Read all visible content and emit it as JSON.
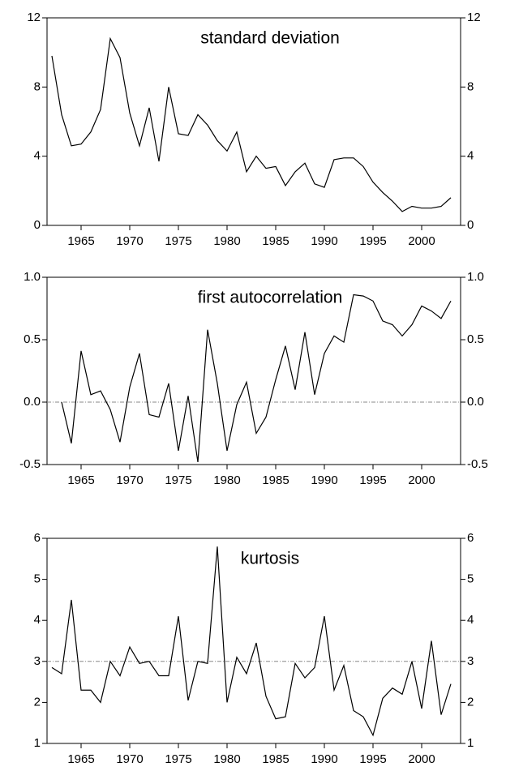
{
  "chart_data": [
    {
      "type": "line",
      "title": "standard deviation",
      "x": [
        1962,
        1963,
        1964,
        1965,
        1966,
        1967,
        1968,
        1969,
        1970,
        1971,
        1972,
        1973,
        1974,
        1975,
        1976,
        1977,
        1978,
        1979,
        1980,
        1981,
        1982,
        1983,
        1984,
        1985,
        1986,
        1987,
        1988,
        1989,
        1990,
        1991,
        1992,
        1993,
        1994,
        1995,
        1996,
        1997,
        1998,
        1999,
        2000,
        2001,
        2002,
        2003
      ],
      "values": [
        9.8,
        6.4,
        4.6,
        4.7,
        5.4,
        6.7,
        10.8,
        9.7,
        6.5,
        4.6,
        6.8,
        3.7,
        8.0,
        5.3,
        5.2,
        6.4,
        5.8,
        4.9,
        4.3,
        5.4,
        3.1,
        4.0,
        3.3,
        3.4,
        2.3,
        3.1,
        3.6,
        2.4,
        2.2,
        3.8,
        3.9,
        3.9,
        3.4,
        2.5,
        1.9,
        1.4,
        0.8,
        1.1,
        1.0,
        1.0,
        1.1,
        1.6
      ],
      "color": "#000000",
      "xlim": [
        1961.5,
        2004
      ],
      "xticks": [
        1965,
        1970,
        1975,
        1980,
        1985,
        1990,
        1995,
        2000
      ],
      "ylim": [
        0,
        12
      ],
      "yticks": [
        0,
        4,
        8,
        12
      ]
    },
    {
      "type": "line",
      "title": "first autocorrelation",
      "x": [
        1962,
        1963,
        1964,
        1965,
        1966,
        1967,
        1968,
        1969,
        1970,
        1971,
        1972,
        1973,
        1974,
        1975,
        1976,
        1977,
        1978,
        1979,
        1980,
        1981,
        1982,
        1983,
        1984,
        1985,
        1986,
        1987,
        1988,
        1989,
        1990,
        1991,
        1992,
        1993,
        1994,
        1995,
        1996,
        1997,
        1998,
        1999,
        2000,
        2001,
        2002,
        2003
      ],
      "values": [
        null,
        0.0,
        -0.33,
        0.41,
        0.06,
        0.09,
        -0.06,
        -0.32,
        0.12,
        0.39,
        -0.1,
        -0.12,
        0.15,
        -0.39,
        0.05,
        -0.48,
        0.58,
        0.15,
        -0.39,
        -0.02,
        0.16,
        -0.25,
        -0.12,
        0.18,
        0.45,
        0.1,
        0.56,
        0.06,
        0.39,
        0.53,
        0.48,
        0.86,
        0.85,
        0.81,
        0.65,
        0.62,
        0.53,
        0.62,
        0.77,
        0.73,
        0.67,
        0.81
      ],
      "color": "#000000",
      "xlim": [
        1961.5,
        2004
      ],
      "xticks": [
        1965,
        1970,
        1975,
        1980,
        1985,
        1990,
        1995,
        2000
      ],
      "ylim": [
        -0.5,
        1.0
      ],
      "yticks": [
        {
          "value": -0.5,
          "label": "-0.5"
        },
        {
          "value": 0,
          "label": "0.0"
        },
        {
          "value": 0.5,
          "label": "0.5"
        },
        {
          "value": 1,
          "label": "1.0"
        }
      ],
      "hline": 0
    },
    {
      "type": "line",
      "title": "kurtosis",
      "x": [
        1962,
        1963,
        1964,
        1965,
        1966,
        1967,
        1968,
        1969,
        1970,
        1971,
        1972,
        1973,
        1974,
        1975,
        1976,
        1977,
        1978,
        1979,
        1980,
        1981,
        1982,
        1983,
        1984,
        1985,
        1986,
        1987,
        1988,
        1989,
        1990,
        1991,
        1992,
        1993,
        1994,
        1995,
        1996,
        1997,
        1998,
        1999,
        2000,
        2001,
        2002,
        2003
      ],
      "values": [
        2.85,
        2.7,
        4.5,
        2.3,
        2.3,
        2.0,
        3.0,
        2.65,
        3.35,
        2.95,
        3.0,
        2.65,
        2.65,
        4.1,
        2.05,
        3.0,
        2.95,
        5.8,
        2.0,
        3.1,
        2.7,
        3.45,
        2.15,
        1.6,
        1.65,
        2.95,
        2.6,
        2.85,
        4.1,
        2.3,
        2.9,
        1.8,
        1.65,
        1.2,
        2.1,
        2.35,
        2.2,
        3.0,
        1.85,
        3.5,
        1.7,
        2.45
      ],
      "color": "#000000",
      "xlim": [
        1961.5,
        2004
      ],
      "xticks": [
        1965,
        1970,
        1975,
        1980,
        1985,
        1990,
        1995,
        2000
      ],
      "ylim": [
        1,
        6
      ],
      "yticks": [
        1,
        2,
        3,
        4,
        5,
        6
      ],
      "hline": 3
    }
  ]
}
